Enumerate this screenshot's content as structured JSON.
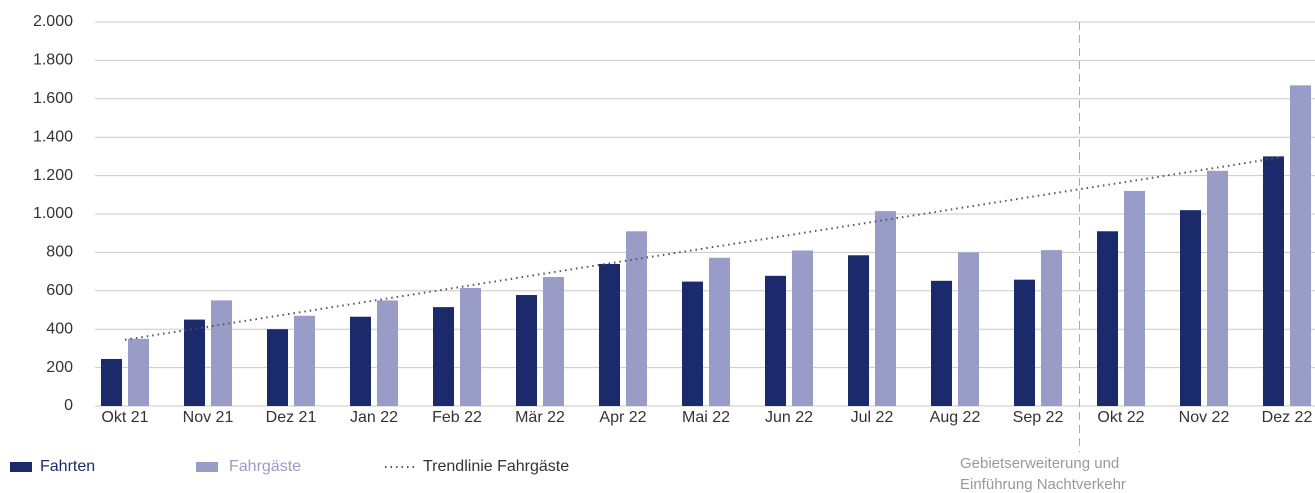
{
  "chart_data": {
    "type": "bar",
    "categories": [
      "Okt 21",
      "Nov 21",
      "Dez 21",
      "Jan 22",
      "Feb 22",
      "Mär 22",
      "Apr 22",
      "Mai 22",
      "Jun 22",
      "Jul 22",
      "Aug 22",
      "Sep 22",
      "Okt 22",
      "Nov 22",
      "Dez 22"
    ],
    "series": [
      {
        "name": "Fahrten",
        "color": "#1b2a6b",
        "values": [
          245,
          450,
          400,
          465,
          515,
          578,
          740,
          648,
          678,
          785,
          652,
          658,
          910,
          1020,
          1300
        ]
      },
      {
        "name": "Fahrgäste",
        "color": "#9a9cc8",
        "values": [
          350,
          550,
          470,
          550,
          615,
          672,
          910,
          772,
          810,
          1015,
          800,
          812,
          1120,
          1225,
          1670
        ]
      }
    ],
    "trend": {
      "name": "Trendlinie Fahrgäste",
      "color": "#555555",
      "values": [
        345,
        413,
        481,
        549,
        617,
        686,
        754,
        822,
        890,
        958,
        1027,
        1095,
        1163,
        1231,
        1300
      ]
    },
    "ylim": [
      0,
      2000
    ],
    "yticks": [
      0,
      200,
      400,
      600,
      800,
      {
        "value": 1000,
        "label": "1.000"
      },
      {
        "value": 1200,
        "label": "1.200"
      },
      {
        "value": 1400,
        "label": "1.400"
      },
      {
        "value": 1600,
        "label": "1.600"
      },
      {
        "value": 1800,
        "label": "1.800"
      },
      {
        "value": 2000,
        "label": "2.000"
      }
    ],
    "grid": true,
    "annotation": {
      "after_category": 11,
      "lines": [
        "Gebietserweiterung und",
        "Einführung Nachtverkehr"
      ]
    }
  }
}
